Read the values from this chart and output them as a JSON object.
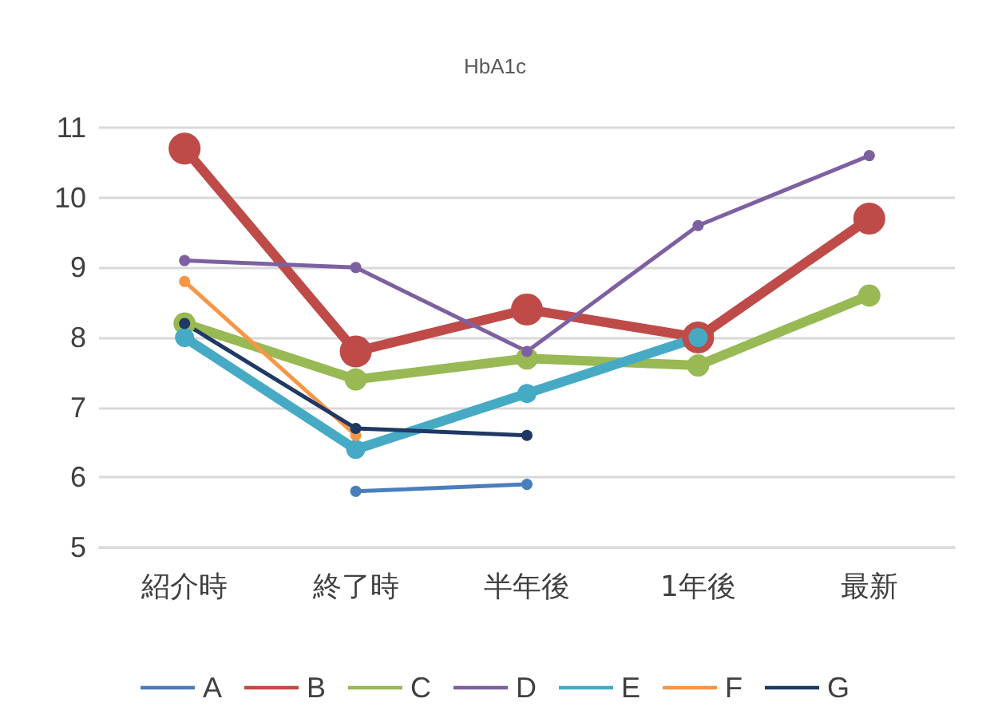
{
  "chart_data": {
    "type": "line",
    "title": "HbA1c",
    "categories": [
      "紹介時",
      "終了時",
      "半年後",
      "1年後",
      "最新"
    ],
    "series": [
      {
        "name": "A",
        "color": "#4a7ebb",
        "values": [
          null,
          5.8,
          5.9,
          null,
          null
        ]
      },
      {
        "name": "B",
        "color": "#be4b48",
        "values": [
          10.7,
          7.8,
          8.4,
          8.0,
          9.7
        ]
      },
      {
        "name": "C",
        "color": "#98b954",
        "values": [
          8.2,
          7.4,
          7.7,
          7.6,
          8.6
        ]
      },
      {
        "name": "D",
        "color": "#7d60a0",
        "values": [
          9.1,
          9.0,
          7.8,
          9.6,
          10.6
        ]
      },
      {
        "name": "E",
        "color": "#46aac5",
        "values": [
          8.0,
          6.4,
          7.2,
          8.0,
          null
        ]
      },
      {
        "name": "F",
        "color": "#f79646",
        "values": [
          8.8,
          6.6,
          null,
          null,
          null
        ]
      },
      {
        "name": "G",
        "color": "#1f3864",
        "values": [
          8.2,
          6.7,
          6.6,
          null,
          null
        ]
      }
    ],
    "ylim": [
      5,
      11
    ],
    "yticks": [
      5,
      6,
      7,
      8,
      9,
      10,
      11
    ],
    "grid": "y",
    "legend": "bottom",
    "marker": "circle",
    "line_style": "solid"
  }
}
